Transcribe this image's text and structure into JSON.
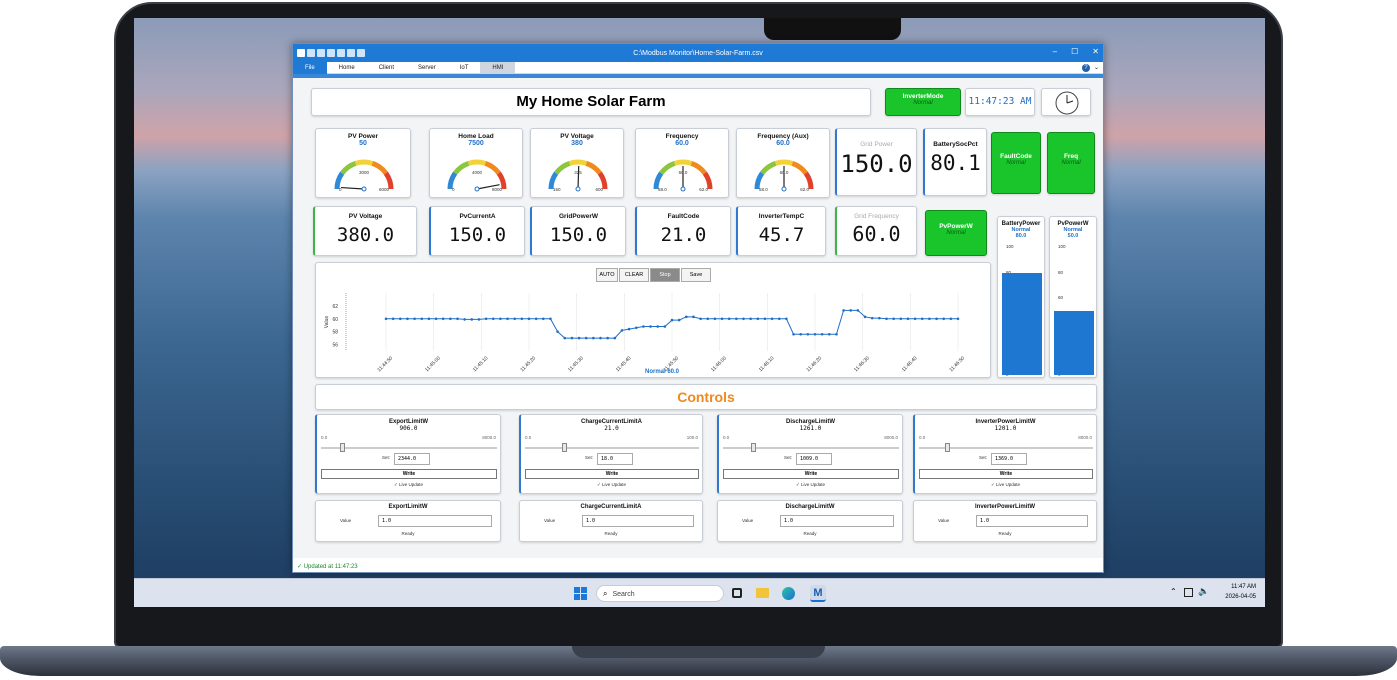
{
  "window": {
    "title": "C:\\Modbus Monitor\\Home-Solar-Farm.csv",
    "tabs": [
      "File",
      "Home",
      "Client",
      "Server",
      "IoT",
      "HMI"
    ],
    "help_icon": "?"
  },
  "dashboard": {
    "title": "My Home Solar Farm",
    "inverter_mode": {
      "label": "InverterMode",
      "status": "Normal"
    },
    "clock_text": "11:47:23 AM",
    "gauges": [
      {
        "label": "PV Power",
        "value": "50",
        "min": "0",
        "mid": "3000",
        "max": "6000",
        "fraction": 0.02
      },
      {
        "label": "Home Load",
        "value": "7500",
        "min": "0",
        "mid": "4000",
        "max": "8000",
        "fraction": 0.94
      },
      {
        "label": "PV Voltage",
        "value": "380",
        "min": "150",
        "mid": "325",
        "max": "600",
        "fraction": 0.51
      },
      {
        "label": "Frequency",
        "value": "60.0",
        "min": "58.0",
        "mid": "60.0",
        "max": "62.0",
        "fraction": 0.5
      },
      {
        "label": "Frequency (Aux)",
        "value": "60.0",
        "min": "58.0",
        "mid": "60.0",
        "max": "62.0",
        "fraction": 0.5
      }
    ],
    "grid_power": {
      "label": "Grid Power",
      "value": "150.0"
    },
    "battery_soc": {
      "label": "BatterySocPct",
      "value": "80.1"
    },
    "fault_code_status": {
      "label": "FaultCode",
      "status": "Normal"
    },
    "freq_status": {
      "label": "Freq",
      "status": "Normal"
    },
    "row2": [
      {
        "label": "PV Voltage",
        "value": "380.0"
      },
      {
        "label": "PvCurrentA",
        "value": "150.0"
      },
      {
        "label": "GridPowerW",
        "value": "150.0"
      },
      {
        "label": "FaultCode",
        "value": "21.0"
      },
      {
        "label": "InverterTempC",
        "value": "45.7"
      }
    ],
    "grid_frequency": {
      "label": "Grid Frequency",
      "value": "60.0"
    },
    "pv_power_status": {
      "label": "PvPowerW",
      "status": "Normal"
    },
    "bars": [
      {
        "label": "BatteryPower",
        "status": "Normal",
        "value": "80.0",
        "fraction": 0.8,
        "ticks": [
          "100",
          "80",
          "60",
          "40",
          "20",
          "0"
        ]
      },
      {
        "label": "PvPowerW",
        "status": "Normal",
        "value": "50.0",
        "fraction": 0.5,
        "ticks": [
          "100",
          "80",
          "60",
          "40",
          "20",
          "0"
        ]
      }
    ],
    "chart_buttons": [
      "AUTO",
      "CLEAR",
      "Stop",
      "Save"
    ],
    "chart_footer": "Normal 60.0",
    "controls_title": "Controls",
    "controls": [
      {
        "label": "ExportLimitW",
        "value": "906.0",
        "min": "0.0",
        "max": "8000.0",
        "set_label": "Set:",
        "set_value": "2344.0",
        "write": "Write",
        "live": "✓ Live Update",
        "fraction": 0.11
      },
      {
        "label": "ChargeCurrentLimitA",
        "value": "21.0",
        "min": "0.0",
        "max": "100.0",
        "set_label": "Set:",
        "set_value": "18.0",
        "write": "Write",
        "live": "✓ Live Update",
        "fraction": 0.21
      },
      {
        "label": "DischargeLimitW",
        "value": "1261.0",
        "min": "0.0",
        "max": "8000.0",
        "set_label": "Set:",
        "set_value": "1009.0",
        "write": "Write",
        "live": "✓ Live Update",
        "fraction": 0.16
      },
      {
        "label": "InverterPowerLimitW",
        "value": "1201.0",
        "min": "0.0",
        "max": "8000.0",
        "set_label": "Set:",
        "set_value": "1369.0",
        "write": "Write",
        "live": "✓ Live Update",
        "fraction": 0.15
      }
    ],
    "value_entries": [
      {
        "label": "ExportLimitW",
        "value_label": "Value",
        "value": "1.0",
        "status": "Ready"
      },
      {
        "label": "ChargeCurrentLimitA",
        "value_label": "Value",
        "value": "1.0",
        "status": "Ready"
      },
      {
        "label": "DischargeLimitW",
        "value_label": "Value",
        "value": "1.0",
        "status": "Ready"
      },
      {
        "label": "InverterPowerLimitW",
        "value_label": "Value",
        "value": "1.0",
        "status": "Ready"
      }
    ],
    "status_text": "✓ Updated at 11:47:23"
  },
  "taskbar": {
    "search": "Search",
    "time": "11:47 AM",
    "date": "2026-04-05"
  },
  "chart_data": {
    "type": "line",
    "title": "",
    "xlabel": "",
    "ylabel": "Value",
    "ylim": [
      55,
      64
    ],
    "ytick_labels": [
      "56",
      "58",
      "60",
      "62"
    ],
    "xtick_labels": [
      "11:44:50",
      "11:45:00",
      "11:45:10",
      "11:45:20",
      "11:45:30",
      "11:45:40",
      "11:45:50",
      "11:46:00",
      "11:46:10",
      "11:46:20",
      "11:46:30",
      "11:46:40",
      "11:46:50"
    ],
    "x": [
      0,
      1,
      2,
      3,
      4,
      5,
      6,
      7,
      8,
      9,
      10,
      11,
      12,
      13,
      14,
      15,
      16,
      17,
      18,
      19,
      20,
      21,
      22,
      23,
      24,
      25,
      26,
      27,
      28,
      29,
      30,
      31,
      32,
      33,
      34,
      35,
      36,
      37,
      38,
      39,
      40,
      41,
      42,
      43,
      44,
      45,
      46,
      47,
      48,
      49,
      50,
      51,
      52,
      53,
      54,
      55,
      56,
      57,
      58,
      59,
      60,
      61,
      62,
      63,
      64,
      65,
      66,
      67,
      68,
      69,
      70,
      71,
      72,
      73,
      74,
      75,
      76,
      77,
      78,
      79,
      80
    ],
    "series": [
      {
        "values": [
          60.0,
          60.0,
          60.0,
          60.0,
          60.0,
          60.0,
          60.0,
          60.0,
          60.0,
          60.0,
          60.0,
          59.9,
          59.9,
          59.9,
          60.0,
          60.0,
          60.0,
          60.0,
          60.0,
          60.0,
          60.0,
          60.0,
          60.0,
          60.0,
          58.0,
          57.0,
          57.0,
          57.0,
          57.0,
          57.0,
          57.0,
          57.0,
          57.0,
          58.2,
          58.4,
          58.6,
          58.8,
          58.8,
          58.8,
          58.8,
          59.8,
          59.8,
          60.3,
          60.3,
          60.0,
          60.0,
          60.0,
          60.0,
          60.0,
          60.0,
          60.0,
          60.0,
          60.0,
          60.0,
          60.0,
          60.0,
          60.0,
          57.6,
          57.6,
          57.6,
          57.6,
          57.6,
          57.6,
          57.6,
          61.3,
          61.3,
          61.3,
          60.3,
          60.1,
          60.1,
          60.0,
          60.0,
          60.0,
          60.0,
          60.0,
          60.0,
          60.0,
          60.0,
          60.0,
          60.0,
          60.0
        ]
      }
    ]
  }
}
